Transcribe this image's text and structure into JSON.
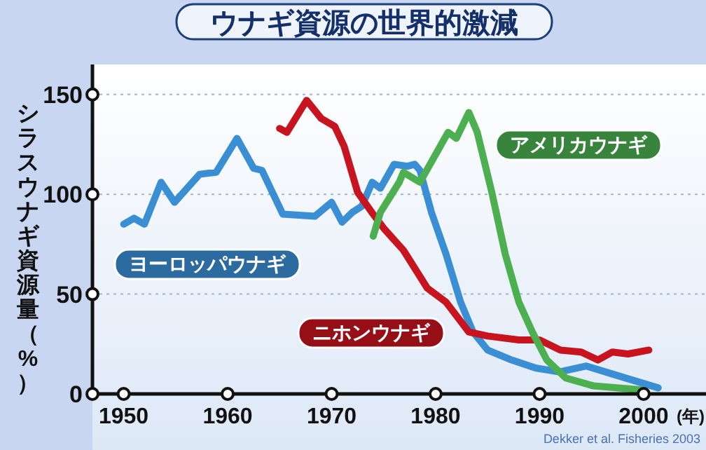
{
  "chart_data": {
    "type": "line",
    "title": "ウナギ資源の世界的激減",
    "ylabel": "シラスウナギ資源量（%）",
    "xlabel": "(年)",
    "annotations": [
      "Dekker et al. Fisheries 2003"
    ],
    "xlim": [
      1947,
      2006
    ],
    "xticks": [
      1950,
      1960,
      1970,
      1980,
      1990,
      2000
    ],
    "ylim": [
      0,
      165
    ],
    "yticks": [
      0,
      50,
      100,
      150
    ],
    "grid": "y",
    "line_style": "solid",
    "series": [
      {
        "name": "ヨーロッパウナギ",
        "color": "#3a8fd4",
        "x": [
          1950,
          1951,
          1952,
          1953.6,
          1954.9,
          1957.3,
          1958.9,
          1960.9,
          1962.5,
          1963.3,
          1965.3,
          1968.4,
          1970,
          1971,
          1972,
          1972.9,
          1973.9,
          1974.7,
          1976,
          1977.3,
          1978,
          1978.5,
          1979.6,
          1981,
          1982.4,
          1983.6,
          1985,
          1987.3,
          1989.6,
          1991.9,
          1994.5,
          1997,
          2001.4
        ],
        "values": [
          85,
          88,
          85,
          106,
          96,
          110,
          111,
          128,
          113,
          112,
          90,
          89,
          96,
          86,
          91,
          94,
          106,
          103,
          115,
          114,
          115,
          112,
          91,
          70,
          46,
          31,
          22,
          17,
          13,
          11,
          14,
          10,
          3
        ]
      },
      {
        "name": "ニホンウナギ",
        "color": "#c8141e",
        "x": [
          1965,
          1965.7,
          1967.6,
          1969,
          1970.3,
          1971.2,
          1972.5,
          1974,
          1975,
          1976.9,
          1979.2,
          1981,
          1983.2,
          1985,
          1988,
          1990,
          1992,
          1994,
          1995.6,
          1997,
          1998.5,
          2000.5
        ],
        "values": [
          133,
          131,
          147,
          138,
          134,
          124,
          101,
          90,
          83,
          72,
          53,
          46,
          31,
          29,
          27,
          27,
          22,
          21,
          17,
          21,
          20,
          22
        ]
      },
      {
        "name": "アメリカウナギ",
        "color": "#4cb050",
        "x": [
          1974,
          1974.7,
          1976.5,
          1976.9,
          1978.5,
          1980,
          1981.2,
          1982,
          1983.2,
          1984,
          1985.4,
          1986.7,
          1988,
          1989.3,
          1990.7,
          1992.5,
          1995.2,
          2000
        ],
        "values": [
          79,
          91,
          106,
          111,
          106,
          120,
          131,
          128,
          141,
          131,
          101,
          70,
          46,
          31,
          17,
          8,
          4,
          2
        ]
      }
    ]
  }
}
